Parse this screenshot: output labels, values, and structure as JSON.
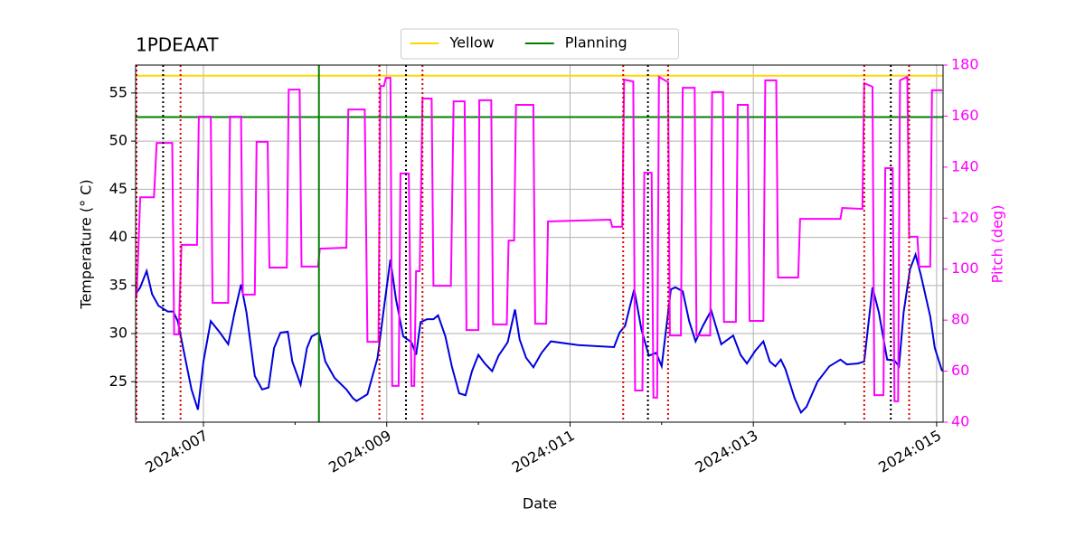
{
  "chart_data": {
    "type": "line",
    "title": "1PDEAAT",
    "xlabel": "Date",
    "ylabel": "Temperature (° C)",
    "y2label": "Pitch (deg)",
    "y2color": "#ff00ff",
    "xlim": [
      6.26,
      15.07
    ],
    "xticks": [
      {
        "value": 7,
        "label": "2024:007"
      },
      {
        "value": 9,
        "label": "2024:009"
      },
      {
        "value": 11,
        "label": "2024:011"
      },
      {
        "value": 13,
        "label": "2024:013"
      },
      {
        "value": 15,
        "label": "2024:015"
      }
    ],
    "xminorticks": [
      8,
      10,
      12,
      14
    ],
    "ylim": [
      20.8,
      57.9
    ],
    "yticks": [
      25,
      30,
      35,
      40,
      45,
      50,
      55
    ],
    "y2lim": [
      40,
      180
    ],
    "y2ticks": [
      40,
      60,
      80,
      100,
      120,
      140,
      160,
      180
    ],
    "grid": true,
    "legend": "upper center",
    "hlines": [
      {
        "name": "Yellow",
        "color": "#ffd700",
        "value": 56.8
      },
      {
        "name": "Planning",
        "color": "#008000",
        "value": 52.5
      }
    ],
    "vlines": [
      {
        "color": "#dd0000",
        "dash": "dotted",
        "x": [
          6.27,
          6.75,
          8.92,
          9.39,
          11.58,
          12.07,
          14.21,
          14.7
        ]
      },
      {
        "color": "#000000",
        "dash": "dotted",
        "x": [
          6.56,
          9.21,
          11.85,
          14.5
        ]
      },
      {
        "color": "#008000",
        "dash": "solid",
        "x": [
          8.26
        ]
      }
    ],
    "series": [
      {
        "color": "#0000dd",
        "axis": "y",
        "x": [
          6.26,
          6.31,
          6.38,
          6.44,
          6.51,
          6.61,
          6.67,
          6.72,
          6.8,
          6.87,
          6.94,
          7.0,
          7.08,
          7.18,
          7.27,
          7.34,
          7.41,
          7.47,
          7.56,
          7.64,
          7.71,
          7.77,
          7.84,
          7.92,
          7.97,
          8.06,
          8.13,
          8.18,
          8.26,
          8.33,
          8.43,
          8.56,
          8.63,
          8.67,
          8.79,
          8.9,
          8.97,
          9.04,
          9.1,
          9.18,
          9.27,
          9.32,
          9.37,
          9.44,
          9.51,
          9.56,
          9.64,
          9.71,
          9.79,
          9.86,
          9.93,
          10.0,
          10.07,
          10.15,
          10.22,
          10.32,
          10.4,
          10.45,
          10.52,
          10.6,
          10.69,
          10.79,
          11.09,
          11.48,
          11.54,
          11.6,
          11.7,
          11.78,
          11.86,
          11.94,
          12.0,
          12.1,
          12.15,
          12.23,
          12.3,
          12.37,
          12.45,
          12.54,
          12.65,
          12.78,
          12.86,
          12.93,
          13.02,
          13.11,
          13.18,
          13.24,
          13.3,
          13.35,
          13.45,
          13.52,
          13.58,
          13.7,
          13.83,
          13.95,
          14.02,
          14.14,
          14.21,
          14.3,
          14.37,
          14.46,
          14.54,
          14.59,
          14.64,
          14.71,
          14.77,
          14.83,
          14.93,
          14.98,
          15.06
        ],
        "values": [
          34.1,
          34.8,
          36.5,
          34.1,
          32.9,
          32.3,
          32.3,
          31.3,
          27.5,
          24.2,
          22.1,
          27.1,
          31.3,
          30.1,
          28.9,
          32.2,
          35.1,
          32.2,
          25.6,
          24.2,
          24.4,
          28.5,
          30.1,
          30.2,
          27.1,
          24.7,
          28.5,
          29.7,
          30.1,
          27.1,
          25.4,
          24.2,
          23.3,
          23.0,
          23.7,
          27.5,
          32.7,
          37.7,
          33.6,
          29.7,
          29.1,
          27.8,
          31.2,
          31.5,
          31.5,
          31.9,
          29.7,
          26.6,
          23.8,
          23.6,
          26.1,
          27.8,
          26.9,
          26.1,
          27.7,
          29.1,
          32.5,
          29.4,
          27.5,
          26.5,
          28.0,
          29.2,
          28.8,
          28.6,
          30.1,
          30.8,
          34.6,
          30.4,
          27.7,
          28.0,
          26.6,
          34.6,
          34.8,
          34.4,
          31.3,
          29.2,
          30.8,
          32.4,
          28.9,
          29.8,
          27.8,
          26.9,
          28.2,
          29.2,
          27.1,
          26.6,
          27.3,
          26.3,
          23.3,
          21.8,
          22.4,
          25.0,
          26.6,
          27.3,
          26.8,
          26.9,
          27.1,
          34.8,
          32.2,
          27.3,
          27.2,
          26.6,
          32.2,
          36.7,
          38.2,
          36.0,
          31.8,
          28.5,
          26.1
        ]
      },
      {
        "color": "#ff00ff",
        "axis": "y2",
        "x": [
          6.27,
          6.31,
          6.46,
          6.49,
          6.66,
          6.68,
          6.73,
          6.76,
          6.93,
          6.95,
          7.08,
          7.1,
          7.27,
          7.29,
          7.41,
          7.43,
          7.56,
          7.58,
          7.7,
          7.72,
          7.91,
          7.93,
          8.05,
          8.07,
          8.25,
          8.27,
          8.56,
          8.58,
          8.76,
          8.79,
          8.91,
          8.93,
          8.97,
          8.99,
          9.04,
          9.06,
          9.13,
          9.15,
          9.24,
          9.27,
          9.3,
          9.32,
          9.36,
          9.39,
          9.49,
          9.51,
          9.7,
          9.73,
          9.85,
          9.87,
          10.0,
          10.01,
          10.14,
          10.16,
          10.31,
          10.33,
          10.39,
          10.41,
          10.6,
          10.62,
          10.74,
          10.76,
          11.44,
          11.46,
          11.57,
          11.59,
          11.69,
          11.71,
          11.79,
          11.81,
          11.89,
          11.91,
          11.95,
          11.97,
          12.07,
          12.09,
          12.21,
          12.23,
          12.36,
          12.38,
          12.53,
          12.55,
          12.67,
          12.68,
          12.81,
          12.83,
          12.94,
          12.96,
          13.11,
          13.13,
          13.25,
          13.27,
          13.49,
          13.51,
          13.95,
          13.97,
          14.19,
          14.21,
          14.3,
          14.32,
          14.42,
          14.44,
          14.52,
          14.54,
          14.58,
          14.6,
          14.68,
          14.7,
          14.79,
          14.81,
          14.93,
          14.95,
          15.06
        ],
        "values": [
          88.6,
          128.2,
          128.2,
          149.5,
          149.5,
          74.4,
          74.4,
          109.5,
          109.5,
          159.8,
          159.8,
          86.8,
          86.8,
          159.8,
          159.8,
          90.0,
          90.0,
          149.9,
          149.9,
          100.6,
          100.6,
          170.4,
          170.4,
          101.0,
          101.0,
          108.0,
          108.4,
          162.6,
          162.6,
          71.5,
          71.5,
          171.8,
          171.8,
          175.0,
          175.0,
          54.2,
          54.2,
          137.5,
          137.5,
          54.2,
          54.2,
          99.2,
          99.2,
          166.9,
          166.9,
          93.5,
          93.5,
          165.8,
          165.8,
          76.1,
          76.1,
          166.2,
          166.2,
          78.3,
          78.3,
          111.2,
          111.2,
          164.4,
          164.4,
          78.6,
          78.6,
          118.7,
          119.4,
          116.6,
          116.6,
          174.3,
          173.6,
          52.4,
          52.4,
          137.8,
          137.8,
          49.6,
          49.6,
          175.4,
          173.3,
          74.0,
          74.0,
          171.1,
          171.1,
          74.0,
          74.0,
          169.4,
          169.4,
          79.3,
          79.3,
          164.4,
          164.4,
          79.7,
          79.7,
          174.0,
          174.0,
          96.7,
          96.7,
          119.7,
          119.7,
          124.0,
          123.6,
          172.9,
          171.5,
          50.6,
          50.6,
          139.6,
          139.6,
          48.2,
          48.2,
          174.0,
          175.4,
          112.7,
          112.7,
          101.0,
          101.0,
          170.1,
          170.1
        ]
      }
    ]
  }
}
